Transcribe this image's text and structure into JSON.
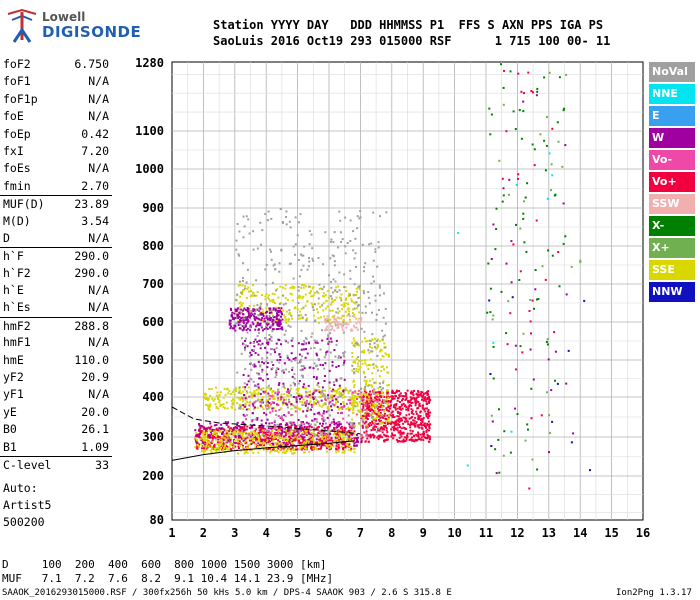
{
  "logo": {
    "top": "Lowell",
    "bottom": "DIGISONDE"
  },
  "header": {
    "line1": "Station YYYY DAY   DDD HHMMSS P1  FFS S AXN PPS IGA PS",
    "line2": "SaoLuis 2016 Oct19 293 015000 RSF      1 715 100 00- 11"
  },
  "params": [
    {
      "name": "foF2",
      "value": "6.750"
    },
    {
      "name": "foF1",
      "value": "N/A"
    },
    {
      "name": "foF1p",
      "value": "N/A"
    },
    {
      "name": "foE",
      "value": "N/A"
    },
    {
      "name": "foEp",
      "value": "0.42"
    },
    {
      "name": "fxI",
      "value": "7.20"
    },
    {
      "name": "foEs",
      "value": "N/A"
    },
    {
      "name": "fmin",
      "value": "2.70"
    },
    {
      "name": "MUF(D)",
      "value": "23.89",
      "sep": true
    },
    {
      "name": "M(D)",
      "value": "3.54"
    },
    {
      "name": "D",
      "value": "N/A"
    },
    {
      "name": "h`F",
      "value": "290.0",
      "sep": true
    },
    {
      "name": "h`F2",
      "value": "290.0"
    },
    {
      "name": "h`E",
      "value": "N/A"
    },
    {
      "name": "h`Es",
      "value": "N/A"
    },
    {
      "name": "hmF2",
      "value": "288.8",
      "sep": true
    },
    {
      "name": "hmF1",
      "value": "N/A"
    },
    {
      "name": "hmE",
      "value": "110.0"
    },
    {
      "name": "yF2",
      "value": "20.9"
    },
    {
      "name": "yF1",
      "value": "N/A"
    },
    {
      "name": "yE",
      "value": "20.0"
    },
    {
      "name": "B0",
      "value": "26.1"
    },
    {
      "name": "B1",
      "value": "1.09"
    },
    {
      "name": "C-level",
      "value": "33",
      "sep": true
    }
  ],
  "auto": [
    "Auto:",
    "Artist5",
    "500200"
  ],
  "bottom": {
    "line1": "D     100  200  400  600  800 1000 1500 3000 [km]",
    "line2": "MUF   7.1  7.2  7.6  8.2  9.1 10.4 14.1 23.9 [MHz]",
    "line3": "SAAOK_2016293015000.RSF / 300fx256h 50 kHs 5.0 km / DPS-4 SAAOK 903 / 2.6 S 315.8 E",
    "line4": "Ion2Png 1.3.17"
  },
  "legend": [
    {
      "label": "NoVal",
      "color": "#a0a0a0"
    },
    {
      "label": "NNE",
      "color": "#00e5f0"
    },
    {
      "label": "E",
      "color": "#39a0f0"
    },
    {
      "label": "W",
      "color": "#a000a0"
    },
    {
      "label": "Vo-",
      "color": "#f048a8"
    },
    {
      "label": "Vo+",
      "color": "#f00040"
    },
    {
      "label": "SSW",
      "color": "#f0b0b0"
    },
    {
      "label": "X-",
      "color": "#008000"
    },
    {
      "label": "X+",
      "color": "#70b050"
    },
    {
      "label": "SSE",
      "color": "#d8d800"
    },
    {
      "label": "NNW",
      "color": "#1010c0"
    }
  ],
  "chart_data": {
    "type": "scatter",
    "title": "",
    "xlabel": "",
    "ylabel": "",
    "xlim": [
      1,
      16
    ],
    "ylim": [
      80,
      1280
    ],
    "x_ticks": [
      "1",
      "2",
      "3",
      "4",
      "5",
      "6",
      "7",
      "8",
      "9",
      "10",
      "11",
      "12",
      "13",
      "14",
      "15",
      "16"
    ],
    "y_ticks": [
      "80",
      "200",
      "300",
      "400",
      "500",
      "600",
      "700",
      "800",
      "900",
      "1000",
      "1100",
      "1280"
    ],
    "y_tick_values": [
      80,
      200,
      300,
      400,
      500,
      600,
      700,
      800,
      900,
      1000,
      1100,
      1280
    ],
    "grid": true,
    "legend_position": "right",
    "clusters": [
      {
        "name": "Vo+",
        "color": "#f00040",
        "x": [
          1.7,
          6.8
        ],
        "y": [
          270,
          330
        ],
        "n": 700
      },
      {
        "name": "Vo+",
        "color": "#f00040",
        "x": [
          7.0,
          9.2
        ],
        "y": [
          290,
          420
        ],
        "n": 650
      },
      {
        "name": "W",
        "color": "#a000a0",
        "x": [
          1.7,
          7.0
        ],
        "y": [
          280,
          340
        ],
        "n": 220
      },
      {
        "name": "SSE",
        "color": "#d8d800",
        "x": [
          1.7,
          6.8
        ],
        "y": [
          260,
          320
        ],
        "n": 380
      },
      {
        "name": "SSE",
        "color": "#d8d800",
        "x": [
          2.0,
          7.0
        ],
        "y": [
          370,
          430
        ],
        "n": 350
      },
      {
        "name": "SSE",
        "color": "#d8d800",
        "x": [
          3.0,
          7.0
        ],
        "y": [
          600,
          700
        ],
        "n": 260
      },
      {
        "name": "SSE",
        "color": "#d8d800",
        "x": [
          6.7,
          7.9
        ],
        "y": [
          330,
          560
        ],
        "n": 200
      },
      {
        "name": "W",
        "color": "#a000a0",
        "x": [
          2.8,
          4.5
        ],
        "y": [
          580,
          640
        ],
        "n": 220
      },
      {
        "name": "W",
        "color": "#a000a0",
        "x": [
          3.2,
          6.5
        ],
        "y": [
          330,
          560
        ],
        "n": 260
      },
      {
        "name": "NoVal",
        "color": "#a0a0a0",
        "x": [
          3.0,
          7.8
        ],
        "y": [
          300,
          900
        ],
        "n": 520
      },
      {
        "name": "Vo-",
        "color": "#f048a8",
        "x": [
          3.2,
          7.5
        ],
        "y": [
          300,
          420
        ],
        "n": 120
      },
      {
        "name": "SSW",
        "color": "#f0b0b0",
        "x": [
          5.8,
          7.0
        ],
        "y": [
          580,
          620
        ],
        "n": 60
      },
      {
        "name": "X-",
        "color": "#008000",
        "x": [
          11.0,
          13.5
        ],
        "y": [
          150,
          1280
        ],
        "n": 70
      },
      {
        "name": "Vo+",
        "color": "#f00040",
        "x": [
          11.5,
          13.3
        ],
        "y": [
          150,
          1280
        ],
        "n": 30
      },
      {
        "name": "W",
        "color": "#a000a0",
        "x": [
          10.8,
          13.8
        ],
        "y": [
          200,
          1200
        ],
        "n": 25
      },
      {
        "name": "X+",
        "color": "#70b050",
        "x": [
          11.0,
          14.0
        ],
        "y": [
          150,
          1280
        ],
        "n": 30
      },
      {
        "name": "NNW",
        "color": "#1010c0",
        "x": [
          11.0,
          14.5
        ],
        "y": [
          200,
          800
        ],
        "n": 10
      },
      {
        "name": "NNE",
        "color": "#00e5f0",
        "x": [
          10.0,
          13.5
        ],
        "y": [
          200,
          1100
        ],
        "n": 8
      }
    ],
    "dashed_curve": {
      "x": [
        1.0,
        1.7,
        2.5,
        3.5,
        4.5,
        5.5,
        6.5,
        7.0
      ],
      "y": [
        375,
        345,
        335,
        330,
        325,
        318,
        312,
        308
      ]
    },
    "solid_curve": {
      "x": [
        1.0,
        2.0,
        3.0,
        4.0,
        5.0,
        6.0,
        6.8
      ],
      "y": [
        240,
        255,
        265,
        272,
        278,
        284,
        290
      ]
    }
  }
}
